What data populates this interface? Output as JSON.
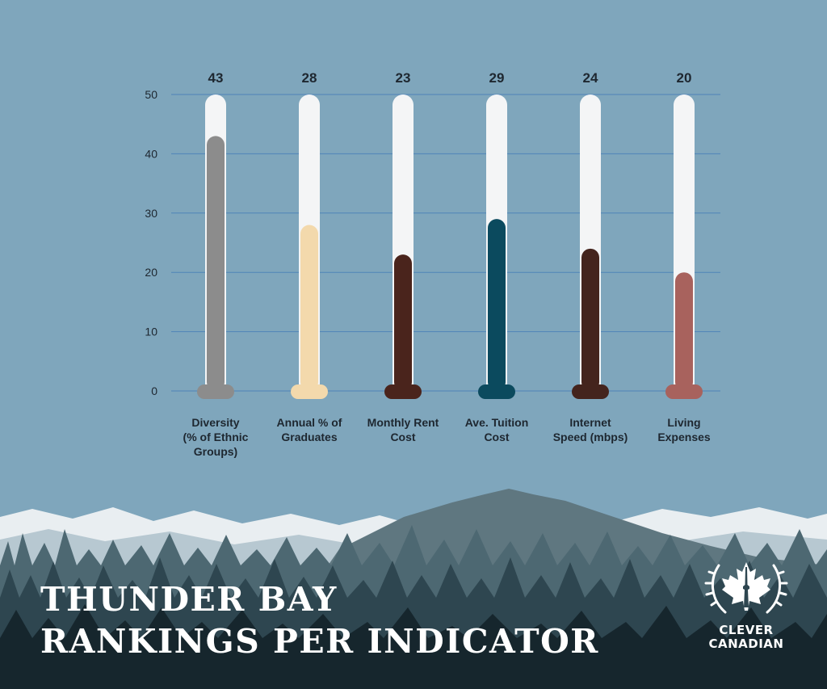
{
  "title_lines": [
    "THUNDER BAY",
    "RANKINGS PER INDICATOR"
  ],
  "brand": {
    "line1": "CLEVER",
    "line2": "CANADIAN"
  },
  "colors": {
    "background": "#7fa6bc",
    "track": "#f4f5f6",
    "gridline": "#4f83b8",
    "text": "#1e2730"
  },
  "chart_data": {
    "type": "bar",
    "categories": [
      [
        "Diversity",
        "(% of Ethnic",
        "Groups)"
      ],
      [
        "Annual % of",
        "Graduates"
      ],
      [
        "Monthly Rent",
        "Cost"
      ],
      [
        "Ave. Tuition",
        "Cost"
      ],
      [
        "Internet",
        "Speed (mbps)"
      ],
      [
        "Living",
        "Expenses"
      ]
    ],
    "values": [
      43,
      28,
      23,
      29,
      24,
      20
    ],
    "value_labels": [
      "43",
      "28",
      "23",
      "29",
      "24",
      "20"
    ],
    "bar_colors": [
      "#8c8c8c",
      "#f3d9ac",
      "#4a241c",
      "#0b4a5e",
      "#44241d",
      "#a8625d"
    ],
    "yticks": [
      "0",
      "10",
      "20",
      "30",
      "40",
      "50"
    ],
    "ylim": [
      0,
      50
    ],
    "grid": true,
    "style": "thermometer"
  }
}
